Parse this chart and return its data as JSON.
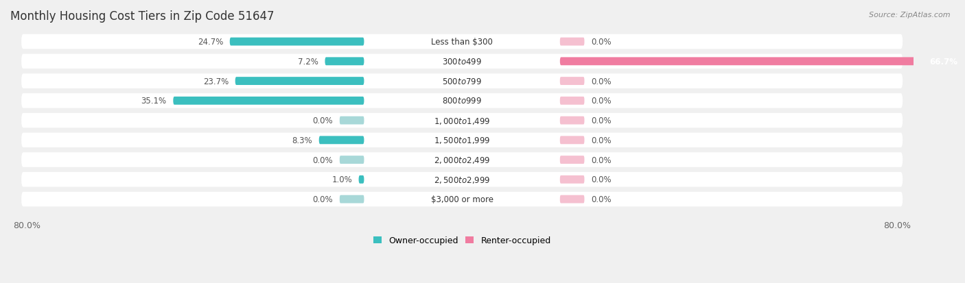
{
  "title": "Monthly Housing Cost Tiers in Zip Code 51647",
  "source": "Source: ZipAtlas.com",
  "categories": [
    "Less than $300",
    "$300 to $499",
    "$500 to $799",
    "$800 to $999",
    "$1,000 to $1,499",
    "$1,500 to $1,999",
    "$2,000 to $2,499",
    "$2,500 to $2,999",
    "$3,000 or more"
  ],
  "owner_values": [
    24.7,
    7.2,
    23.7,
    35.1,
    0.0,
    8.3,
    0.0,
    1.0,
    0.0
  ],
  "renter_values": [
    0.0,
    66.7,
    0.0,
    0.0,
    0.0,
    0.0,
    0.0,
    0.0,
    0.0
  ],
  "owner_color": "#3bbfbf",
  "renter_color": "#f07ca0",
  "owner_color_light": "#a8d8d8",
  "renter_color_light": "#f5c0d0",
  "x_min": -80.0,
  "x_max": 80.0,
  "background_color": "#f0f0f0",
  "row_bg_color": "#ffffff",
  "title_fontsize": 12,
  "label_fontsize": 8.5,
  "tick_fontsize": 9,
  "legend_fontsize": 9
}
